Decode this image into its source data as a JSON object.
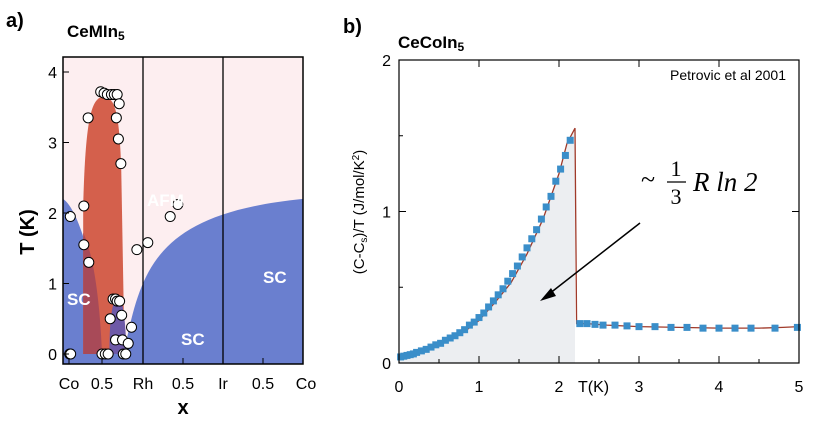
{
  "chart_data": [
    {
      "type": "phase-diagram",
      "panel_label": "a)",
      "title": "CeMIn5",
      "title_base": "CeMIn",
      "title_sub": "5",
      "xlabel": "x",
      "ylabel": "T (K)",
      "ylim": [
        0,
        4.2
      ],
      "yticks": [
        "0",
        "1",
        "2",
        "3",
        "4"
      ],
      "xticks": [
        "Co",
        "0.5",
        "Rh",
        "0.5",
        "Ir",
        "0.5",
        "Co"
      ],
      "boundaries": [
        "Rh",
        "Ir"
      ],
      "regions": [
        "AFM",
        "SC",
        "SC",
        "SC"
      ],
      "colors": {
        "background": "#fdeef0",
        "afm": "#d4604c",
        "sc": "#6a7fcf",
        "overlap": "#a84a58",
        "sc_mid": "#6e5aa8"
      },
      "points": [
        {
          "x": 0.04,
          "T": 1.95
        },
        {
          "x": 0.02,
          "T": 0.0
        },
        {
          "x": 0.05,
          "T": 0.0
        },
        {
          "x": 0.45,
          "T": 2.1
        },
        {
          "x": 0.45,
          "T": 1.55
        },
        {
          "x": 0.6,
          "T": 1.3
        },
        {
          "x": 0.58,
          "T": 3.35
        },
        {
          "x": 0.96,
          "T": 3.72
        },
        {
          "x": 1.05,
          "T": 3.7
        },
        {
          "x": 1.13,
          "T": 3.68
        },
        {
          "x": 1.23,
          "T": 3.68
        },
        {
          "x": 1.3,
          "T": 3.68
        },
        {
          "x": 1.37,
          "T": 3.68
        },
        {
          "x": 1.42,
          "T": 3.55
        },
        {
          "x": 1.35,
          "T": 3.35
        },
        {
          "x": 1.4,
          "T": 3.05
        },
        {
          "x": 1.46,
          "T": 2.7
        },
        {
          "x": 1.0,
          "T": 0.0
        },
        {
          "x": 1.08,
          "T": 0.0
        },
        {
          "x": 1.15,
          "T": 0.0
        },
        {
          "x": 1.2,
          "T": 0.5
        },
        {
          "x": 1.27,
          "T": 0.78
        },
        {
          "x": 1.33,
          "T": 0.78
        },
        {
          "x": 1.37,
          "T": 0.75
        },
        {
          "x": 1.43,
          "T": 0.75
        },
        {
          "x": 1.48,
          "T": 0.55
        },
        {
          "x": 1.33,
          "T": 0.2
        },
        {
          "x": 1.5,
          "T": 0.2
        },
        {
          "x": 1.52,
          "T": 0.0
        },
        {
          "x": 1.58,
          "T": 0.0
        },
        {
          "x": 1.64,
          "T": 0.15
        },
        {
          "x": 1.72,
          "T": 0.38
        },
        {
          "x": 1.85,
          "T": 1.48
        },
        {
          "x": 2.12,
          "T": 1.58
        },
        {
          "x": 2.68,
          "T": 1.95
        },
        {
          "x": 2.87,
          "T": 2.12
        }
      ]
    },
    {
      "type": "scatter-line",
      "panel_label": "b)",
      "title": "CeCoIn5",
      "title_base": "CeCoIn",
      "title_sub": "5",
      "xlabel": "T(K)",
      "ylabel": "(C-Cs)/T  (J/mol/K2)",
      "ylabel_parts": {
        "a": "(C-C",
        "sub": "s",
        "b": ")/T  (J/mol/K",
        "sup": "2",
        "c": ")"
      },
      "xlim": [
        0,
        5
      ],
      "ylim": [
        0,
        2
      ],
      "xticks": [
        "0",
        "1",
        "2",
        "3",
        "4",
        "5"
      ],
      "yticks": [
        "0",
        "1",
        "2"
      ],
      "annotation": "Petrovic et al 2001",
      "formula": {
        "prefix": "~",
        "numerator": "1",
        "denominator": "3",
        "rest": "R ln 2"
      },
      "colors": {
        "points": "#3a8ec9",
        "line": "#a03a2a",
        "shade": "#eceef1"
      },
      "series": [
        {
          "name": "data",
          "x": [
            0.02,
            0.06,
            0.1,
            0.14,
            0.18,
            0.22,
            0.28,
            0.34,
            0.4,
            0.46,
            0.52,
            0.58,
            0.64,
            0.7,
            0.76,
            0.82,
            0.88,
            0.94,
            1.0,
            1.06,
            1.12,
            1.18,
            1.24,
            1.3,
            1.36,
            1.42,
            1.48,
            1.54,
            1.6,
            1.66,
            1.72,
            1.78,
            1.84,
            1.9,
            1.96,
            2.02,
            2.08,
            2.14,
            2.26,
            2.35,
            2.45,
            2.55,
            2.7,
            2.85,
            3.0,
            3.2,
            3.4,
            3.6,
            3.8,
            4.0,
            4.2,
            4.4,
            4.7,
            4.98
          ],
          "y": [
            0.04,
            0.045,
            0.05,
            0.055,
            0.06,
            0.07,
            0.08,
            0.09,
            0.105,
            0.12,
            0.13,
            0.15,
            0.165,
            0.18,
            0.2,
            0.22,
            0.25,
            0.27,
            0.3,
            0.33,
            0.37,
            0.41,
            0.45,
            0.49,
            0.54,
            0.59,
            0.64,
            0.7,
            0.76,
            0.82,
            0.88,
            0.95,
            1.03,
            1.1,
            1.2,
            1.28,
            1.37,
            1.47,
            0.26,
            0.26,
            0.255,
            0.25,
            0.25,
            0.245,
            0.24,
            0.24,
            0.235,
            0.235,
            0.23,
            0.23,
            0.23,
            0.23,
            0.23,
            0.235
          ]
        }
      ],
      "curve": {
        "x": [
          0,
          0.2,
          0.4,
          0.6,
          0.8,
          1.0,
          1.2,
          1.4,
          1.6,
          1.8,
          2.0,
          2.1,
          2.2,
          2.22,
          2.35,
          2.6,
          3.0,
          3.5,
          4.0,
          4.5,
          4.8,
          5.0
        ],
        "y": [
          0.04,
          0.06,
          0.1,
          0.14,
          0.2,
          0.28,
          0.4,
          0.53,
          0.72,
          0.95,
          1.25,
          1.45,
          1.55,
          0.26,
          0.26,
          0.25,
          0.24,
          0.235,
          0.23,
          0.23,
          0.235,
          0.24
        ]
      }
    }
  ]
}
